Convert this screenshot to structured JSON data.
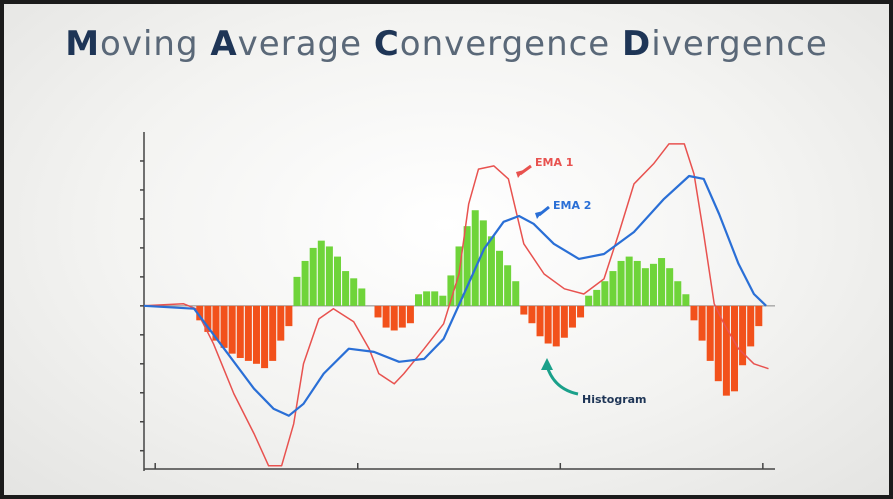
{
  "chart_data": {
    "type": "combo",
    "title": "Moving Average Convergence Divergence",
    "xlim": [
      -7.5,
      71
    ],
    "xticks": [
      -5.5,
      19.5,
      44.5,
      69.5
    ],
    "ylim": [
      -5.7,
      6
    ],
    "yticks": [
      -5,
      -4,
      -3,
      -2,
      -1,
      0,
      1,
      2,
      3,
      4,
      5
    ],
    "histogram": {
      "name": "Histogram",
      "positive_color": "#6fd43a",
      "negative_color": "#f2511b",
      "values": [
        -0.5,
        -0.9,
        -1.2,
        -1.45,
        -1.65,
        -1.8,
        -1.9,
        -2.0,
        -2.15,
        -1.9,
        -1.2,
        -0.7,
        1.0,
        1.55,
        2.0,
        2.25,
        2.05,
        1.7,
        1.2,
        0.95,
        0.6,
        0,
        -0.4,
        -0.75,
        -0.85,
        -0.75,
        -0.6,
        0.4,
        0.5,
        0.5,
        0.35,
        1.05,
        2.05,
        2.75,
        3.3,
        2.95,
        2.4,
        1.9,
        1.4,
        0.85,
        -0.3,
        -0.6,
        -1.05,
        -1.3,
        -1.4,
        -1.1,
        -0.75,
        -0.4,
        0.35,
        0.55,
        0.85,
        1.2,
        1.55,
        1.7,
        1.55,
        1.3,
        1.45,
        1.65,
        1.3,
        0.85,
        0.4,
        -0.5,
        -1.2,
        -1.9,
        -2.6,
        -3.1,
        -2.95,
        -2.05,
        -1.4,
        -0.7
      ]
    },
    "series": [
      {
        "name": "EMA 1",
        "color": "#e8524f",
        "x": [
          -6.9,
          -2.0,
          -0.5,
          1.7,
          4.2,
          6.7,
          8.5,
          10.1,
          11.6,
          12.8,
          14.7,
          16.5,
          19.0,
          20.9,
          22.1,
          24.0,
          25.2,
          27.7,
          30.1,
          32.0,
          33.2,
          34.4,
          36.3,
          38.1,
          40.0,
          42.5,
          45.0,
          47.4,
          49.9,
          51.7,
          53.6,
          56.0,
          57.9,
          59.8,
          61.0,
          62.2,
          63.5,
          64.7,
          66.5,
          68.4,
          70.2
        ],
        "values": [
          0,
          0.07,
          -0.1,
          -1.31,
          -3.03,
          -4.41,
          -5.52,
          -5.52,
          -4.07,
          -2.0,
          -0.45,
          -0.1,
          -0.55,
          -1.48,
          -2.34,
          -2.69,
          -2.34,
          -1.48,
          -0.62,
          1.1,
          3.52,
          4.72,
          4.83,
          4.38,
          2.14,
          1.1,
          0.59,
          0.41,
          0.93,
          2.48,
          4.21,
          4.9,
          5.59,
          5.59,
          4.55,
          2.48,
          0.07,
          -0.62,
          -1.48,
          -2.0,
          -2.17
        ]
      },
      {
        "name": "EMA 2",
        "color": "#2a6fd6",
        "x": [
          -6.9,
          -0.7,
          3.0,
          6.7,
          9.1,
          11.0,
          12.8,
          15.3,
          18.4,
          21.5,
          24.6,
          27.7,
          30.1,
          32.6,
          35.1,
          37.5,
          39.4,
          41.2,
          43.7,
          46.8,
          49.9,
          53.6,
          57.3,
          60.4,
          62.2,
          64.1,
          66.5,
          68.4,
          69.9
        ],
        "values": [
          0,
          -0.1,
          -1.48,
          -2.86,
          -3.55,
          -3.79,
          -3.38,
          -2.34,
          -1.48,
          -1.59,
          -1.93,
          -1.83,
          -1.14,
          0.41,
          1.97,
          2.9,
          3.1,
          2.83,
          2.14,
          1.62,
          1.79,
          2.55,
          3.69,
          4.48,
          4.38,
          3.17,
          1.45,
          0.41,
          0
        ]
      }
    ]
  }
}
